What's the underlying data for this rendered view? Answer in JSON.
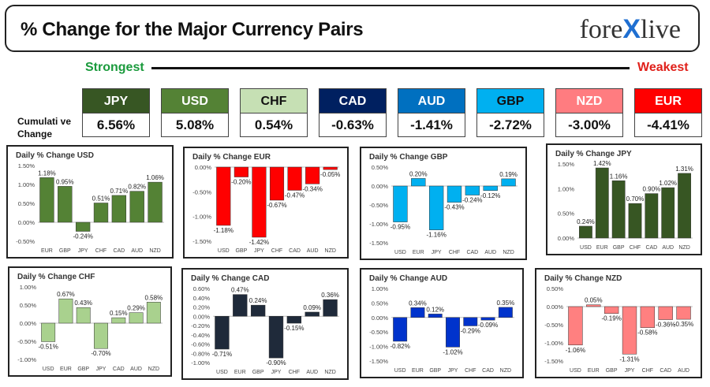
{
  "header": {
    "title": "% Change for the Major Currency Pairs",
    "logo_text_left": "fore",
    "logo_text_x": "X",
    "logo_text_right": "live"
  },
  "legend": {
    "strongest": "Strongest",
    "weakest": "Weakest",
    "cumulative_label_1": "Cumulati ve",
    "cumulative_label_2": "Change"
  },
  "currencies": [
    {
      "code": "JPY",
      "value": "6.56%",
      "color": "#375623",
      "text_color": "#ffffff"
    },
    {
      "code": "USD",
      "value": "5.08%",
      "color": "#548235",
      "text_color": "#ffffff"
    },
    {
      "code": "CHF",
      "value": "0.54%",
      "color": "#c6e0b4",
      "text_color": "#111111"
    },
    {
      "code": "CAD",
      "value": "-0.63%",
      "color": "#002060",
      "text_color": "#ffffff"
    },
    {
      "code": "AUD",
      "value": "-1.41%",
      "color": "#0070c0",
      "text_color": "#ffffff"
    },
    {
      "code": "GBP",
      "value": "-2.72%",
      "color": "#00b0f0",
      "text_color": "#111111"
    },
    {
      "code": "NZD",
      "value": "-3.00%",
      "color": "#ff7c80",
      "text_color": "#ffffff"
    },
    {
      "code": "EUR",
      "value": "-4.41%",
      "color": "#ff0000",
      "text_color": "#ffffff"
    }
  ],
  "chart_data": [
    {
      "type": "bar",
      "title": "Daily % Change USD",
      "categories": [
        "EUR",
        "GBP",
        "JPY",
        "CHF",
        "CAD",
        "AUD",
        "NZD"
      ],
      "values": [
        1.18,
        0.95,
        -0.24,
        0.51,
        0.71,
        0.82,
        1.06
      ],
      "labels": [
        "1.18%",
        "0.95%",
        "-0.24%",
        "0.51%",
        "0.71%",
        "0.82%",
        "1.06%"
      ],
      "yticks": [
        "1.50%",
        "1.00%",
        "0.50%",
        "0.00%",
        "-0.50%"
      ],
      "ylim": [
        -0.5,
        1.5
      ],
      "color": "#548235"
    },
    {
      "type": "bar",
      "title": "Daily % Change EUR",
      "categories": [
        "USD",
        "GBP",
        "JPY",
        "CHF",
        "CAD",
        "AUD",
        "NZD"
      ],
      "values": [
        -1.18,
        -0.2,
        -1.42,
        -0.67,
        -0.47,
        -0.34,
        -0.05
      ],
      "labels": [
        "-1.18%",
        "-0.20%",
        "-1.42%",
        "-0.67%",
        "-0.47%",
        "-0.34%",
        "-0.05%"
      ],
      "yticks": [
        "0.00%",
        "-0.50%",
        "-1.00%",
        "-1.50%"
      ],
      "ylim": [
        -1.5,
        0
      ],
      "color": "#ff0000"
    },
    {
      "type": "bar",
      "title": "Daily % Change GBP",
      "categories": [
        "USD",
        "EUR",
        "JPY",
        "CHF",
        "CAD",
        "AUD",
        "NZD"
      ],
      "values": [
        -0.95,
        0.2,
        -1.16,
        -0.43,
        -0.24,
        -0.12,
        0.19
      ],
      "labels": [
        "-0.95%",
        "0.20%",
        "-1.16%",
        "-0.43%",
        "-0.24%",
        "-0.12%",
        "0.19%"
      ],
      "yticks": [
        "0.50%",
        "0.00%",
        "-0.50%",
        "-1.00%",
        "-1.50%"
      ],
      "ylim": [
        -1.5,
        0.5
      ],
      "color": "#00b0f0"
    },
    {
      "type": "bar",
      "title": "Daily % Change JPY",
      "categories": [
        "USD",
        "EUR",
        "GBP",
        "CHF",
        "CAD",
        "AUD",
        "NZD"
      ],
      "values": [
        0.24,
        1.42,
        1.16,
        0.7,
        0.9,
        1.02,
        1.31
      ],
      "labels": [
        "0.24%",
        "1.42%",
        "1.16%",
        "0.70%",
        "0.90%",
        "1.02%",
        "1.31%"
      ],
      "yticks": [
        "1.50%",
        "1.00%",
        "0.50%",
        "0.00%"
      ],
      "ylim": [
        0,
        1.5
      ],
      "color": "#375623"
    },
    {
      "type": "bar",
      "title": "Daily % Change CHF",
      "categories": [
        "USD",
        "EUR",
        "GBP",
        "JPY",
        "CAD",
        "AUD",
        "NZD"
      ],
      "values": [
        -0.51,
        0.67,
        0.43,
        -0.7,
        0.15,
        0.29,
        0.58
      ],
      "labels": [
        "-0.51%",
        "0.67%",
        "0.43%",
        "-0.70%",
        "0.15%",
        "0.29%",
        "0.58%"
      ],
      "yticks": [
        "1.00%",
        "0.50%",
        "0.00%",
        "-0.50%",
        "-1.00%"
      ],
      "ylim": [
        -1,
        1
      ],
      "color": "#a9d18e"
    },
    {
      "type": "bar",
      "title": "Daily % Change CAD",
      "categories": [
        "USD",
        "EUR",
        "GBP",
        "JPY",
        "CHF",
        "AUD",
        "NZD"
      ],
      "values": [
        -0.71,
        0.47,
        0.24,
        -0.9,
        -0.15,
        0.09,
        0.36
      ],
      "labels": [
        "-0.71%",
        "0.47%",
        "0.24%",
        "-0.90%",
        "-0.15%",
        "0.09%",
        "0.36%"
      ],
      "yticks": [
        "0.60%",
        "0.40%",
        "0.20%",
        "0.00%",
        "-0.20%",
        "-0.40%",
        "-0.60%",
        "-0.80%",
        "-1.00%"
      ],
      "ylim": [
        -1,
        0.6
      ],
      "color": "#1f2a3a"
    },
    {
      "type": "bar",
      "title": "Daily % Change AUD",
      "categories": [
        "USD",
        "EUR",
        "GBP",
        "JPY",
        "CHF",
        "CAD",
        "NZD"
      ],
      "values": [
        -0.82,
        0.34,
        0.12,
        -1.02,
        -0.29,
        -0.09,
        0.35
      ],
      "labels": [
        "-0.82%",
        "0.34%",
        "0.12%",
        "-1.02%",
        "-0.29%",
        "-0.09%",
        "0.35%"
      ],
      "yticks": [
        "1.00%",
        "0.50%",
        "0.00%",
        "-0.50%",
        "-1.00%",
        "-1.50%"
      ],
      "ylim": [
        -1.5,
        1
      ],
      "color": "#0033cc"
    },
    {
      "type": "bar",
      "title": "Daily % Change NZD",
      "categories": [
        "USD",
        "EUR",
        "GBP",
        "JPY",
        "CHF",
        "CAD",
        "AUD"
      ],
      "values": [
        -1.06,
        0.05,
        -0.19,
        -1.31,
        -0.58,
        -0.36,
        -0.35
      ],
      "labels": [
        "-1.06%",
        "0.05%",
        "-0.19%",
        "-1.31%",
        "-0.58%",
        "-0.36%",
        "-0.35%"
      ],
      "yticks": [
        "0.50%",
        "0.00%",
        "-0.50%",
        "-1.00%",
        "-1.50%"
      ],
      "ylim": [
        -1.5,
        0.5
      ],
      "color": "#ff8080"
    }
  ]
}
